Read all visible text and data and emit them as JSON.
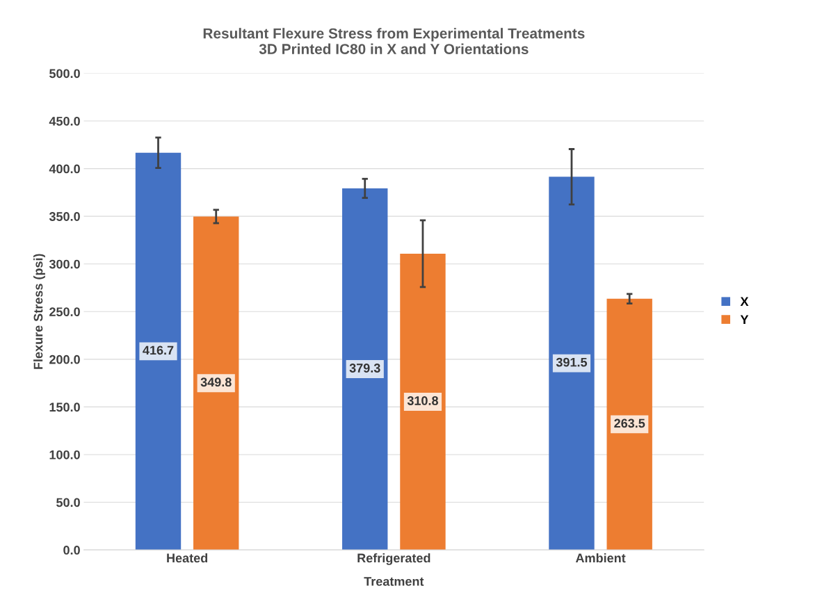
{
  "chart_data": {
    "type": "bar",
    "title": "Resultant Flexure Stress from Experimental Treatments\n3D Printed IC80 in X and Y Orientations",
    "xlabel": "Treatment",
    "ylabel": "Flexure Stress (psi)",
    "categories": [
      "Heated",
      "Refrigerated",
      "Ambient"
    ],
    "series": [
      {
        "name": "X",
        "color": "#4472c4",
        "values": [
          416.7,
          379.3,
          391.5
        ],
        "errors": [
          16,
          10,
          29
        ],
        "value_labels": [
          "416.7",
          "379.3",
          "391.5"
        ]
      },
      {
        "name": "Y",
        "color": "#ed7d31",
        "values": [
          349.8,
          310.8,
          263.5
        ],
        "errors": [
          7,
          35,
          5
        ],
        "value_labels": [
          "349.8",
          "310.8",
          "263.5"
        ]
      }
    ],
    "ylim": [
      0,
      500
    ],
    "yticks": [
      {
        "value": 0,
        "label": "0.0"
      },
      {
        "value": 50,
        "label": "50.0"
      },
      {
        "value": 100,
        "label": "100.0"
      },
      {
        "value": 150,
        "label": "150.0"
      },
      {
        "value": 200,
        "label": "200.0"
      },
      {
        "value": 250,
        "label": "250.0"
      },
      {
        "value": 300,
        "label": "300.0"
      },
      {
        "value": 350,
        "label": "350.0"
      },
      {
        "value": 400,
        "label": "400.0"
      },
      {
        "value": 450,
        "label": "450.0"
      },
      {
        "value": 500,
        "label": "500.0"
      }
    ],
    "grid": "y",
    "legend": "right"
  }
}
